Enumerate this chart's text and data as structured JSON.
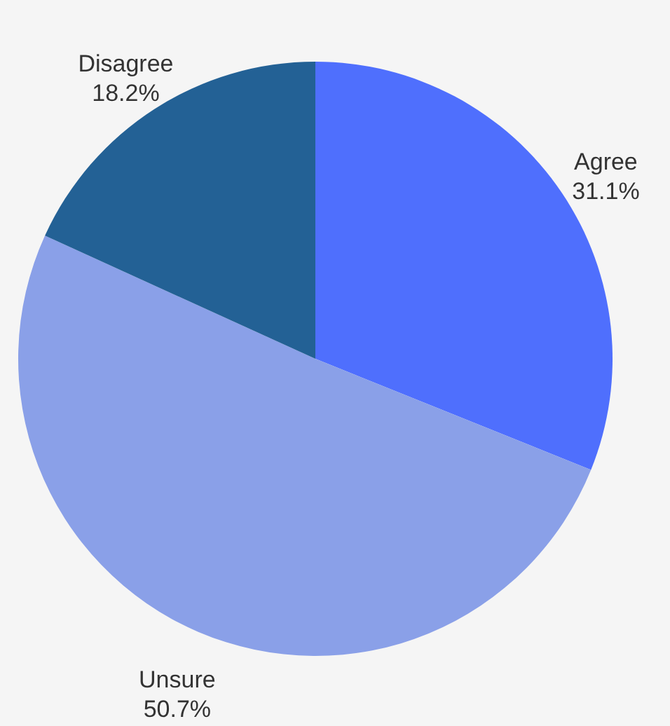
{
  "chart_data": {
    "type": "pie",
    "categories": [
      "Agree",
      "Unsure",
      "Disagree"
    ],
    "values": [
      31.1,
      50.7,
      18.2
    ],
    "colors": [
      "#4f6ffd",
      "#8aa0e8",
      "#236195"
    ],
    "value_labels": [
      "31.1%",
      "50.7%",
      "18.2%"
    ]
  }
}
